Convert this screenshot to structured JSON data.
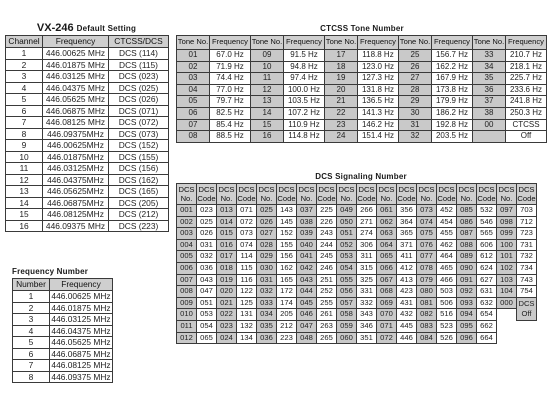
{
  "vx_default": {
    "title_main": "VX-246",
    "title_rest": "Default Setting",
    "headers": [
      "Channel",
      "Frequency",
      "CTCSS/DCS"
    ],
    "rows": [
      [
        "1",
        "446.00625 MHz",
        "DCS (114)"
      ],
      [
        "2",
        "446.01875 MHz",
        "DCS (115)"
      ],
      [
        "3",
        "446.03125 MHz",
        "DCS (023)"
      ],
      [
        "4",
        "446.04375 MHz",
        "DCS (025)"
      ],
      [
        "5",
        "446.05625 MHz",
        "DCS (026)"
      ],
      [
        "6",
        "446.06875 MHz",
        "DCS (071)"
      ],
      [
        "7",
        "446.08125 MHz",
        "DCS (072)"
      ],
      [
        "8",
        "446.09375MHz",
        "DCS (073)"
      ],
      [
        "9",
        "446.00625MHz",
        "DCS (152)"
      ],
      [
        "10",
        "446.01875MHz",
        "DCS (155)"
      ],
      [
        "11",
        "446.03125MHz",
        "DCS (156)"
      ],
      [
        "12",
        "446.04375MHz",
        "DCS (162)"
      ],
      [
        "13",
        "446.05625MHz",
        "DCS (165)"
      ],
      [
        "14",
        "446.06875MHz",
        "DCS (205)"
      ],
      [
        "15",
        "446.08125MHz",
        "DCS (212)"
      ],
      [
        "16",
        "446.09375 MHz",
        "DCS (223)"
      ]
    ]
  },
  "frequency_number": {
    "title": "Frequency Number",
    "headers": [
      "Number",
      "Frequency"
    ],
    "rows": [
      [
        "1",
        "446.00625 MHz"
      ],
      [
        "2",
        "446.01875 MHz"
      ],
      [
        "3",
        "446.03125 MHz"
      ],
      [
        "4",
        "446.04375 MHz"
      ],
      [
        "5",
        "446.05625 MHz"
      ],
      [
        "6",
        "446.06875 MHz"
      ],
      [
        "7",
        "446.08125 MHz"
      ],
      [
        "8",
        "446.09375 MHz"
      ]
    ]
  },
  "ctcss": {
    "title": "CTCSS Tone Number",
    "headers": [
      "Tone No.",
      "Frequency",
      "Tone No.",
      "Frequency",
      "Tone No.",
      "Frequency",
      "Tone No.",
      "Frequency",
      "Tone No.",
      "Frequency"
    ],
    "rows": [
      [
        "01",
        "67.0 Hz",
        "09",
        "91.5 Hz",
        "17",
        "118.8 Hz",
        "25",
        "156.7 Hz",
        "33",
        "210.7 Hz"
      ],
      [
        "02",
        "71.9 Hz",
        "10",
        "94.8 Hz",
        "18",
        "123.0 Hz",
        "26",
        "162.2 Hz",
        "34",
        "218.1 Hz"
      ],
      [
        "03",
        "74.4 Hz",
        "11",
        "97.4 Hz",
        "19",
        "127.3 Hz",
        "27",
        "167.9 Hz",
        "35",
        "225.7 Hz"
      ],
      [
        "04",
        "77.0 Hz",
        "12",
        "100.0 Hz",
        "20",
        "131.8 Hz",
        "28",
        "173.8 Hz",
        "36",
        "233.6 Hz"
      ],
      [
        "05",
        "79.7 Hz",
        "13",
        "103.5 Hz",
        "21",
        "136.5 Hz",
        "29",
        "179.9 Hz",
        "37",
        "241.8 Hz"
      ],
      [
        "06",
        "82.5 Hz",
        "14",
        "107.2 Hz",
        "22",
        "141.3 Hz",
        "30",
        "186.2 Hz",
        "38",
        "250.3 Hz"
      ],
      [
        "07",
        "85.4 Hz",
        "15",
        "110.9 Hz",
        "23",
        "146.2 Hz",
        "31",
        "192.8 Hz",
        "00",
        "CTCSS"
      ],
      [
        "08",
        "88.5 Hz",
        "16",
        "114.8 Hz",
        "24",
        "151.4 Hz",
        "32",
        "203.5 Hz",
        "",
        "Off"
      ]
    ]
  },
  "dcs": {
    "title": "DCS Signaling Number",
    "header_no": "DCS No.",
    "header_code": "DCS Code",
    "rows": [
      [
        "001",
        "023",
        "013",
        "071",
        "025",
        "143",
        "037",
        "225",
        "049",
        "266",
        "061",
        "356",
        "073",
        "452",
        "085",
        "532",
        "097",
        "703"
      ],
      [
        "002",
        "025",
        "014",
        "072",
        "026",
        "145",
        "038",
        "226",
        "050",
        "271",
        "062",
        "364",
        "074",
        "454",
        "086",
        "546",
        "098",
        "712"
      ],
      [
        "003",
        "026",
        "015",
        "073",
        "027",
        "152",
        "039",
        "243",
        "051",
        "274",
        "063",
        "365",
        "075",
        "455",
        "087",
        "565",
        "099",
        "723"
      ],
      [
        "004",
        "031",
        "016",
        "074",
        "028",
        "155",
        "040",
        "244",
        "052",
        "306",
        "064",
        "371",
        "076",
        "462",
        "088",
        "606",
        "100",
        "731"
      ],
      [
        "005",
        "032",
        "017",
        "114",
        "029",
        "156",
        "041",
        "245",
        "053",
        "311",
        "065",
        "411",
        "077",
        "464",
        "089",
        "612",
        "101",
        "732"
      ],
      [
        "006",
        "036",
        "018",
        "115",
        "030",
        "162",
        "042",
        "246",
        "054",
        "315",
        "066",
        "412",
        "078",
        "465",
        "090",
        "624",
        "102",
        "734"
      ],
      [
        "007",
        "043",
        "019",
        "116",
        "031",
        "165",
        "043",
        "251",
        "055",
        "325",
        "067",
        "413",
        "079",
        "466",
        "091",
        "627",
        "103",
        "743"
      ],
      [
        "008",
        "047",
        "020",
        "122",
        "032",
        "172",
        "044",
        "252",
        "056",
        "331",
        "068",
        "423",
        "080",
        "503",
        "092",
        "631",
        "104",
        "754"
      ],
      [
        "009",
        "051",
        "021",
        "125",
        "033",
        "174",
        "045",
        "255",
        "057",
        "332",
        "069",
        "431",
        "081",
        "506",
        "093",
        "632",
        "000",
        "DCS Off"
      ],
      [
        "010",
        "053",
        "022",
        "131",
        "034",
        "205",
        "046",
        "261",
        "058",
        "343",
        "070",
        "432",
        "082",
        "516",
        "094",
        "654",
        "",
        ""
      ],
      [
        "011",
        "054",
        "023",
        "132",
        "035",
        "212",
        "047",
        "263",
        "059",
        "346",
        "071",
        "445",
        "083",
        "523",
        "095",
        "662",
        "",
        ""
      ],
      [
        "012",
        "065",
        "024",
        "134",
        "036",
        "223",
        "048",
        "265",
        "060",
        "351",
        "072",
        "446",
        "084",
        "526",
        "096",
        "664",
        "",
        ""
      ]
    ]
  }
}
